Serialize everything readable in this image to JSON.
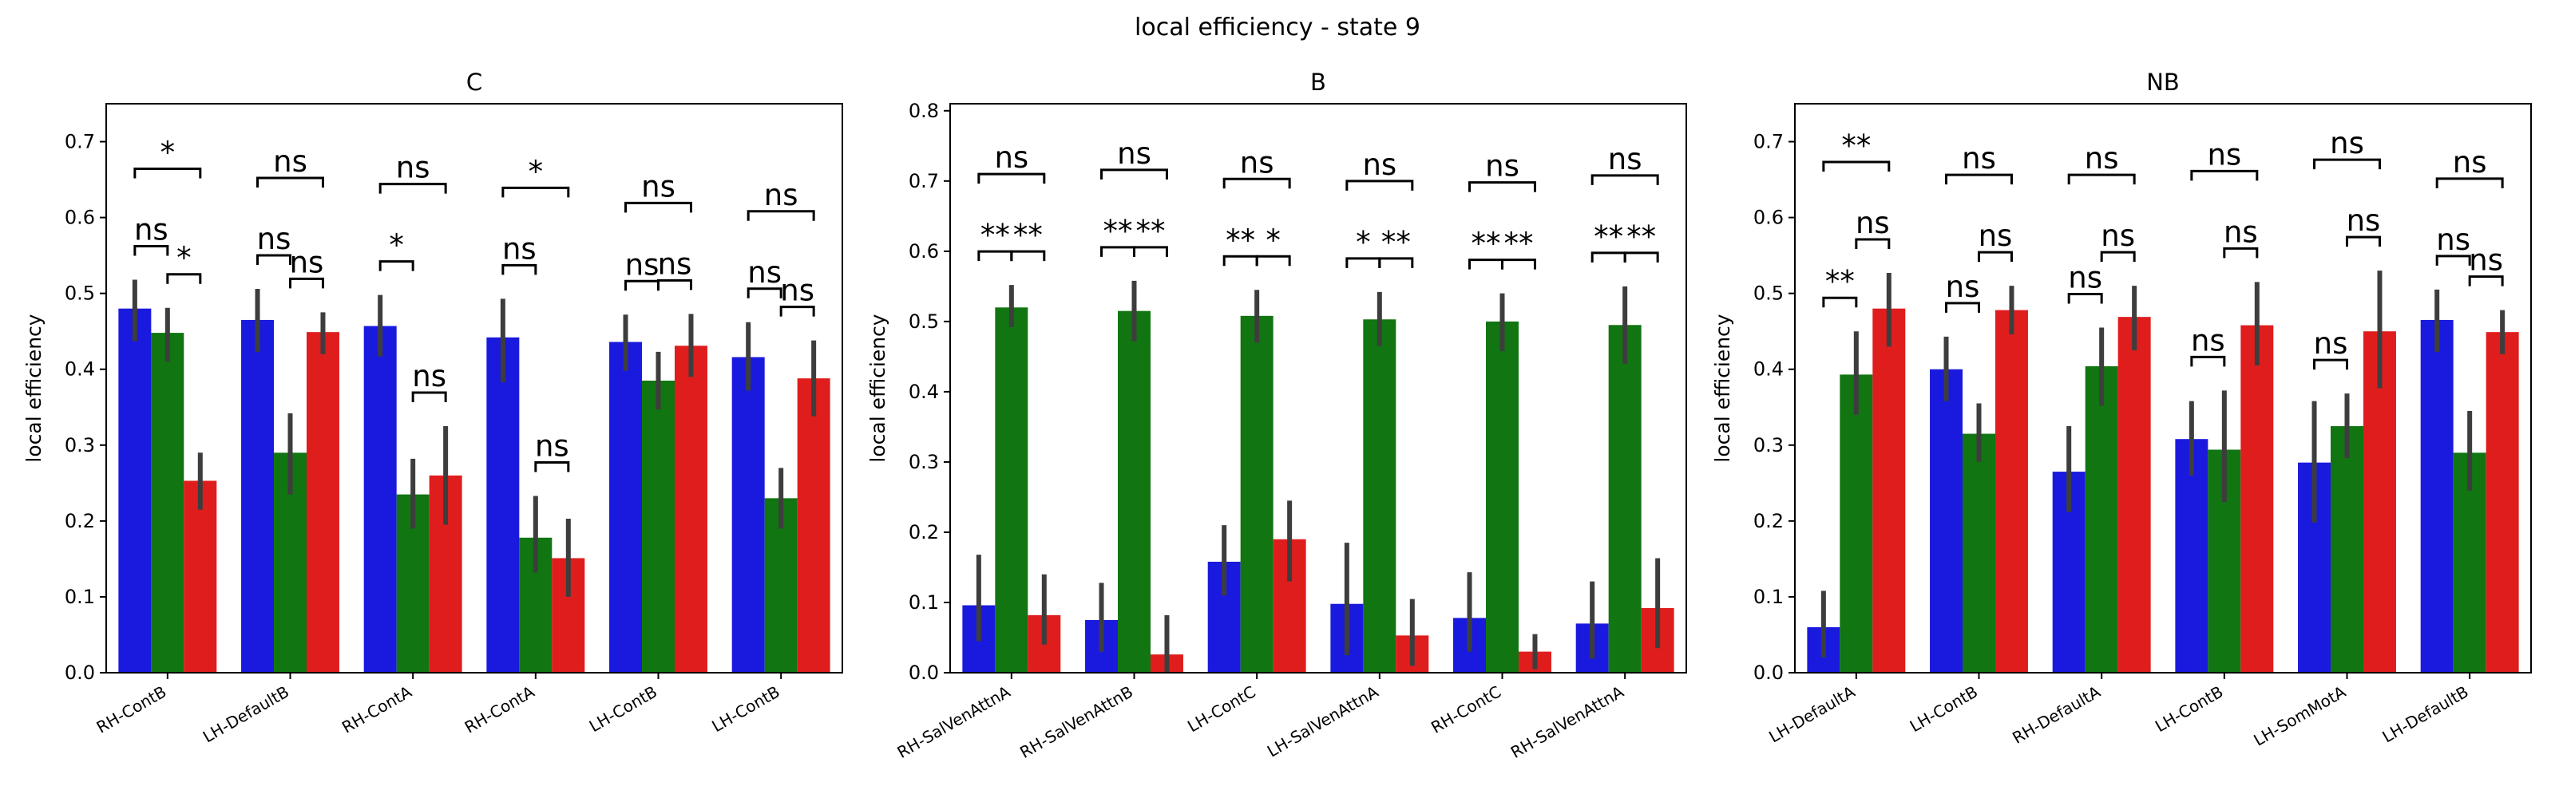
{
  "suptitle": "local efficiency - state 9",
  "colors": {
    "series": [
      "#1a1adf",
      "#117511",
      "#df1d1d"
    ],
    "errorbar": "#3d3d3d"
  },
  "chart_data": [
    {
      "type": "bar",
      "title": "C",
      "ylabel": "local efficiency",
      "ylim": [
        0,
        0.75
      ],
      "yticks": [
        0.0,
        0.1,
        0.2,
        0.3,
        0.4,
        0.5,
        0.6,
        0.7
      ],
      "categories": [
        "RH-ContB",
        "LH-DefaultB",
        "RH-ContA",
        "RH-ContA",
        "LH-ContB",
        "LH-ContB"
      ],
      "series": [
        {
          "values": [
            0.48,
            0.465,
            0.457,
            0.442,
            0.436,
            0.416
          ],
          "err_low": [
            0.437,
            0.423,
            0.417,
            0.383,
            0.398,
            0.372
          ],
          "err_high": [
            0.518,
            0.506,
            0.498,
            0.493,
            0.472,
            0.462
          ]
        },
        {
          "values": [
            0.448,
            0.29,
            0.235,
            0.178,
            0.385,
            0.23
          ],
          "err_low": [
            0.41,
            0.235,
            0.19,
            0.132,
            0.347,
            0.19
          ],
          "err_high": [
            0.481,
            0.342,
            0.282,
            0.233,
            0.423,
            0.27
          ]
        },
        {
          "values": [
            0.253,
            0.449,
            0.26,
            0.151,
            0.431,
            0.388
          ],
          "err_low": [
            0.215,
            0.42,
            0.195,
            0.1,
            0.39,
            0.338
          ],
          "err_high": [
            0.29,
            0.475,
            0.325,
            0.203,
            0.473,
            0.438
          ]
        }
      ],
      "annotations": [
        {
          "group": 0,
          "pair": "0-1",
          "label": "ns"
        },
        {
          "group": 0,
          "pair": "1-2",
          "label": "*"
        },
        {
          "group": 0,
          "pair": "0-2",
          "label": "*"
        },
        {
          "group": 1,
          "pair": "0-1",
          "label": "ns"
        },
        {
          "group": 1,
          "pair": "1-2",
          "label": "ns"
        },
        {
          "group": 1,
          "pair": "0-2",
          "label": "ns"
        },
        {
          "group": 2,
          "pair": "0-1",
          "label": "*"
        },
        {
          "group": 2,
          "pair": "1-2",
          "label": "ns"
        },
        {
          "group": 2,
          "pair": "0-2",
          "label": "ns"
        },
        {
          "group": 3,
          "pair": "0-1",
          "label": "ns"
        },
        {
          "group": 3,
          "pair": "1-2",
          "label": "ns"
        },
        {
          "group": 3,
          "pair": "0-2",
          "label": "*"
        },
        {
          "group": 4,
          "pair": "0-1",
          "label": "ns"
        },
        {
          "group": 4,
          "pair": "1-2",
          "label": "ns"
        },
        {
          "group": 4,
          "pair": "0-2",
          "label": "ns"
        },
        {
          "group": 5,
          "pair": "0-1",
          "label": "ns"
        },
        {
          "group": 5,
          "pair": "1-2",
          "label": "ns"
        },
        {
          "group": 5,
          "pair": "0-2",
          "label": "ns"
        }
      ]
    },
    {
      "type": "bar",
      "title": "B",
      "ylabel": "local efficiency",
      "ylim": [
        0,
        0.81
      ],
      "yticks": [
        0.0,
        0.1,
        0.2,
        0.3,
        0.4,
        0.5,
        0.6,
        0.7,
        0.8
      ],
      "categories": [
        "RH-SalVenAttnA",
        "RH-SalVenAttnB",
        "LH-ContC",
        "LH-SalVenAttnA",
        "RH-ContC",
        "RH-SalVenAttnA"
      ],
      "series": [
        {
          "values": [
            0.096,
            0.075,
            0.158,
            0.098,
            0.078,
            0.07
          ],
          "err_low": [
            0.045,
            0.03,
            0.11,
            0.025,
            0.03,
            0.02
          ],
          "err_high": [
            0.168,
            0.128,
            0.21,
            0.185,
            0.143,
            0.13
          ]
        },
        {
          "values": [
            0.52,
            0.515,
            0.508,
            0.503,
            0.5,
            0.495
          ],
          "err_low": [
            0.492,
            0.472,
            0.47,
            0.465,
            0.458,
            0.44
          ],
          "err_high": [
            0.552,
            0.558,
            0.545,
            0.542,
            0.54,
            0.55
          ]
        },
        {
          "values": [
            0.082,
            0.026,
            0.19,
            0.053,
            0.03,
            0.092
          ],
          "err_low": [
            0.04,
            0.0,
            0.13,
            0.01,
            0.005,
            0.035
          ],
          "err_high": [
            0.14,
            0.082,
            0.245,
            0.105,
            0.055,
            0.163
          ]
        }
      ],
      "annotations": [
        {
          "group": 0,
          "pair": "0-1",
          "label": "**"
        },
        {
          "group": 0,
          "pair": "1-2",
          "label": "**"
        },
        {
          "group": 0,
          "pair": "0-2",
          "label": "ns"
        },
        {
          "group": 1,
          "pair": "0-1",
          "label": "**"
        },
        {
          "group": 1,
          "pair": "1-2",
          "label": "**"
        },
        {
          "group": 1,
          "pair": "0-2",
          "label": "ns"
        },
        {
          "group": 2,
          "pair": "0-1",
          "label": "**"
        },
        {
          "group": 2,
          "pair": "1-2",
          "label": "*"
        },
        {
          "group": 2,
          "pair": "0-2",
          "label": "ns"
        },
        {
          "group": 3,
          "pair": "0-1",
          "label": "*"
        },
        {
          "group": 3,
          "pair": "1-2",
          "label": "**"
        },
        {
          "group": 3,
          "pair": "0-2",
          "label": "ns"
        },
        {
          "group": 4,
          "pair": "0-1",
          "label": "**"
        },
        {
          "group": 4,
          "pair": "1-2",
          "label": "**"
        },
        {
          "group": 4,
          "pair": "0-2",
          "label": "ns"
        },
        {
          "group": 5,
          "pair": "0-1",
          "label": "**"
        },
        {
          "group": 5,
          "pair": "1-2",
          "label": "**"
        },
        {
          "group": 5,
          "pair": "0-2",
          "label": "ns"
        }
      ]
    },
    {
      "type": "bar",
      "title": "NB",
      "ylabel": "local efficiency",
      "ylim": [
        0,
        0.75
      ],
      "yticks": [
        0.0,
        0.1,
        0.2,
        0.3,
        0.4,
        0.5,
        0.6,
        0.7
      ],
      "categories": [
        "LH-DefaultA",
        "LH-ContB",
        "RH-DefaultA",
        "LH-ContB",
        "LH-SomMotA",
        "LH-DefaultB"
      ],
      "series": [
        {
          "values": [
            0.06,
            0.4,
            0.265,
            0.308,
            0.277,
            0.465
          ],
          "err_low": [
            0.02,
            0.358,
            0.212,
            0.26,
            0.198,
            0.423
          ],
          "err_high": [
            0.108,
            0.443,
            0.325,
            0.358,
            0.358,
            0.505
          ]
        },
        {
          "values": [
            0.393,
            0.315,
            0.404,
            0.294,
            0.325,
            0.29
          ],
          "err_low": [
            0.34,
            0.278,
            0.352,
            0.225,
            0.283,
            0.24
          ],
          "err_high": [
            0.45,
            0.355,
            0.455,
            0.372,
            0.368,
            0.345
          ]
        },
        {
          "values": [
            0.48,
            0.478,
            0.469,
            0.458,
            0.45,
            0.449
          ],
          "err_low": [
            0.43,
            0.446,
            0.425,
            0.405,
            0.375,
            0.42
          ],
          "err_high": [
            0.527,
            0.51,
            0.51,
            0.515,
            0.53,
            0.478
          ]
        }
      ],
      "annotations": [
        {
          "group": 0,
          "pair": "0-1",
          "label": "**"
        },
        {
          "group": 0,
          "pair": "1-2",
          "label": "ns"
        },
        {
          "group": 0,
          "pair": "0-2",
          "label": "**"
        },
        {
          "group": 1,
          "pair": "0-1",
          "label": "ns"
        },
        {
          "group": 1,
          "pair": "1-2",
          "label": "ns"
        },
        {
          "group": 1,
          "pair": "0-2",
          "label": "ns"
        },
        {
          "group": 2,
          "pair": "0-1",
          "label": "ns"
        },
        {
          "group": 2,
          "pair": "1-2",
          "label": "ns"
        },
        {
          "group": 2,
          "pair": "0-2",
          "label": "ns"
        },
        {
          "group": 3,
          "pair": "0-1",
          "label": "ns"
        },
        {
          "group": 3,
          "pair": "1-2",
          "label": "ns"
        },
        {
          "group": 3,
          "pair": "0-2",
          "label": "ns"
        },
        {
          "group": 4,
          "pair": "0-1",
          "label": "ns"
        },
        {
          "group": 4,
          "pair": "1-2",
          "label": "ns"
        },
        {
          "group": 4,
          "pair": "0-2",
          "label": "ns"
        },
        {
          "group": 5,
          "pair": "0-1",
          "label": "ns"
        },
        {
          "group": 5,
          "pair": "1-2",
          "label": "ns"
        },
        {
          "group": 5,
          "pair": "0-2",
          "label": "ns"
        }
      ]
    }
  ]
}
